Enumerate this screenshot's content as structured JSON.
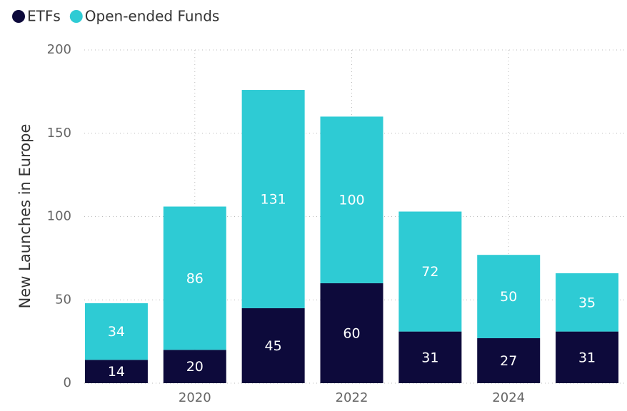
{
  "chart_data": {
    "type": "stacked_bar",
    "ylabel": "New Launches in Europe",
    "categories": [
      null,
      "2020",
      null,
      "2022",
      null,
      "2024",
      null
    ],
    "series": [
      {
        "name": "ETFs",
        "color": "#0d0a3b",
        "values": [
          14,
          20,
          45,
          60,
          31,
          27,
          31
        ]
      },
      {
        "name": "Open-ended Funds",
        "color": "#2ecbd4",
        "values": [
          34,
          86,
          131,
          100,
          72,
          50,
          35
        ]
      }
    ],
    "ylim": [
      0,
      200
    ],
    "yticks": [
      0,
      50,
      100,
      150,
      200
    ],
    "grid": true,
    "legend": "top-left"
  }
}
